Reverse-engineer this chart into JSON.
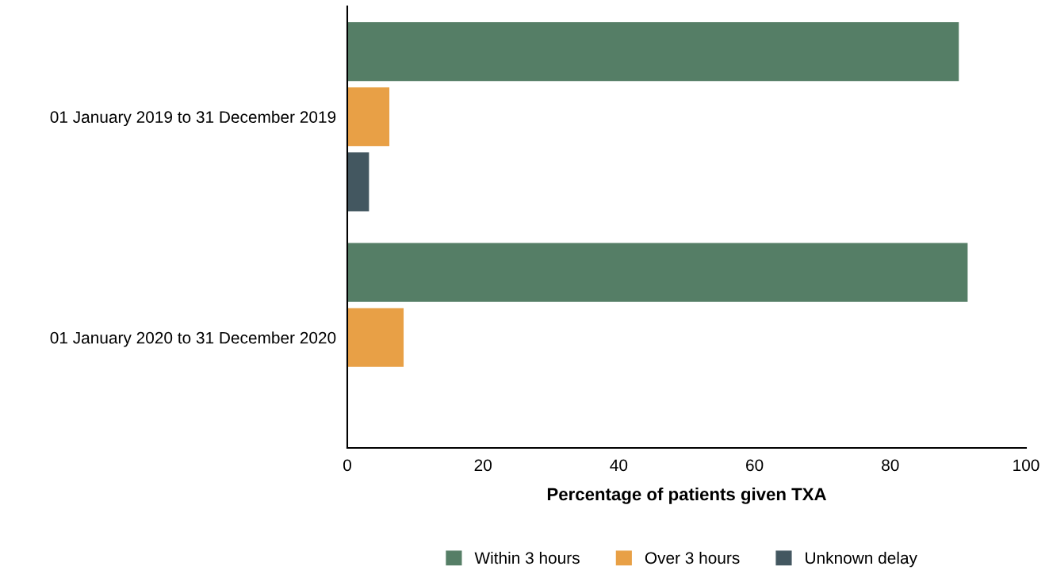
{
  "chart_data": {
    "type": "bar",
    "orientation": "horizontal",
    "xlabel": "Percentage of patients given TXA",
    "categories": [
      "01 January 2019 to 31 December 2019",
      "01 January 2020 to 31 December 2020"
    ],
    "series": [
      {
        "name": "Within 3 hours",
        "color": "#557e66",
        "values": [
          90.1,
          91.4
        ]
      },
      {
        "name": "Over 3 hours",
        "color": "#e8a046",
        "values": [
          6.2,
          8.3
        ]
      },
      {
        "name": "Unknown delay",
        "color": "#435760",
        "values": [
          3.2,
          null
        ]
      }
    ],
    "xlim": [
      0,
      100
    ],
    "xticks": [
      0,
      20,
      40,
      60,
      80,
      100
    ],
    "grid": false,
    "legend": "bottom"
  }
}
